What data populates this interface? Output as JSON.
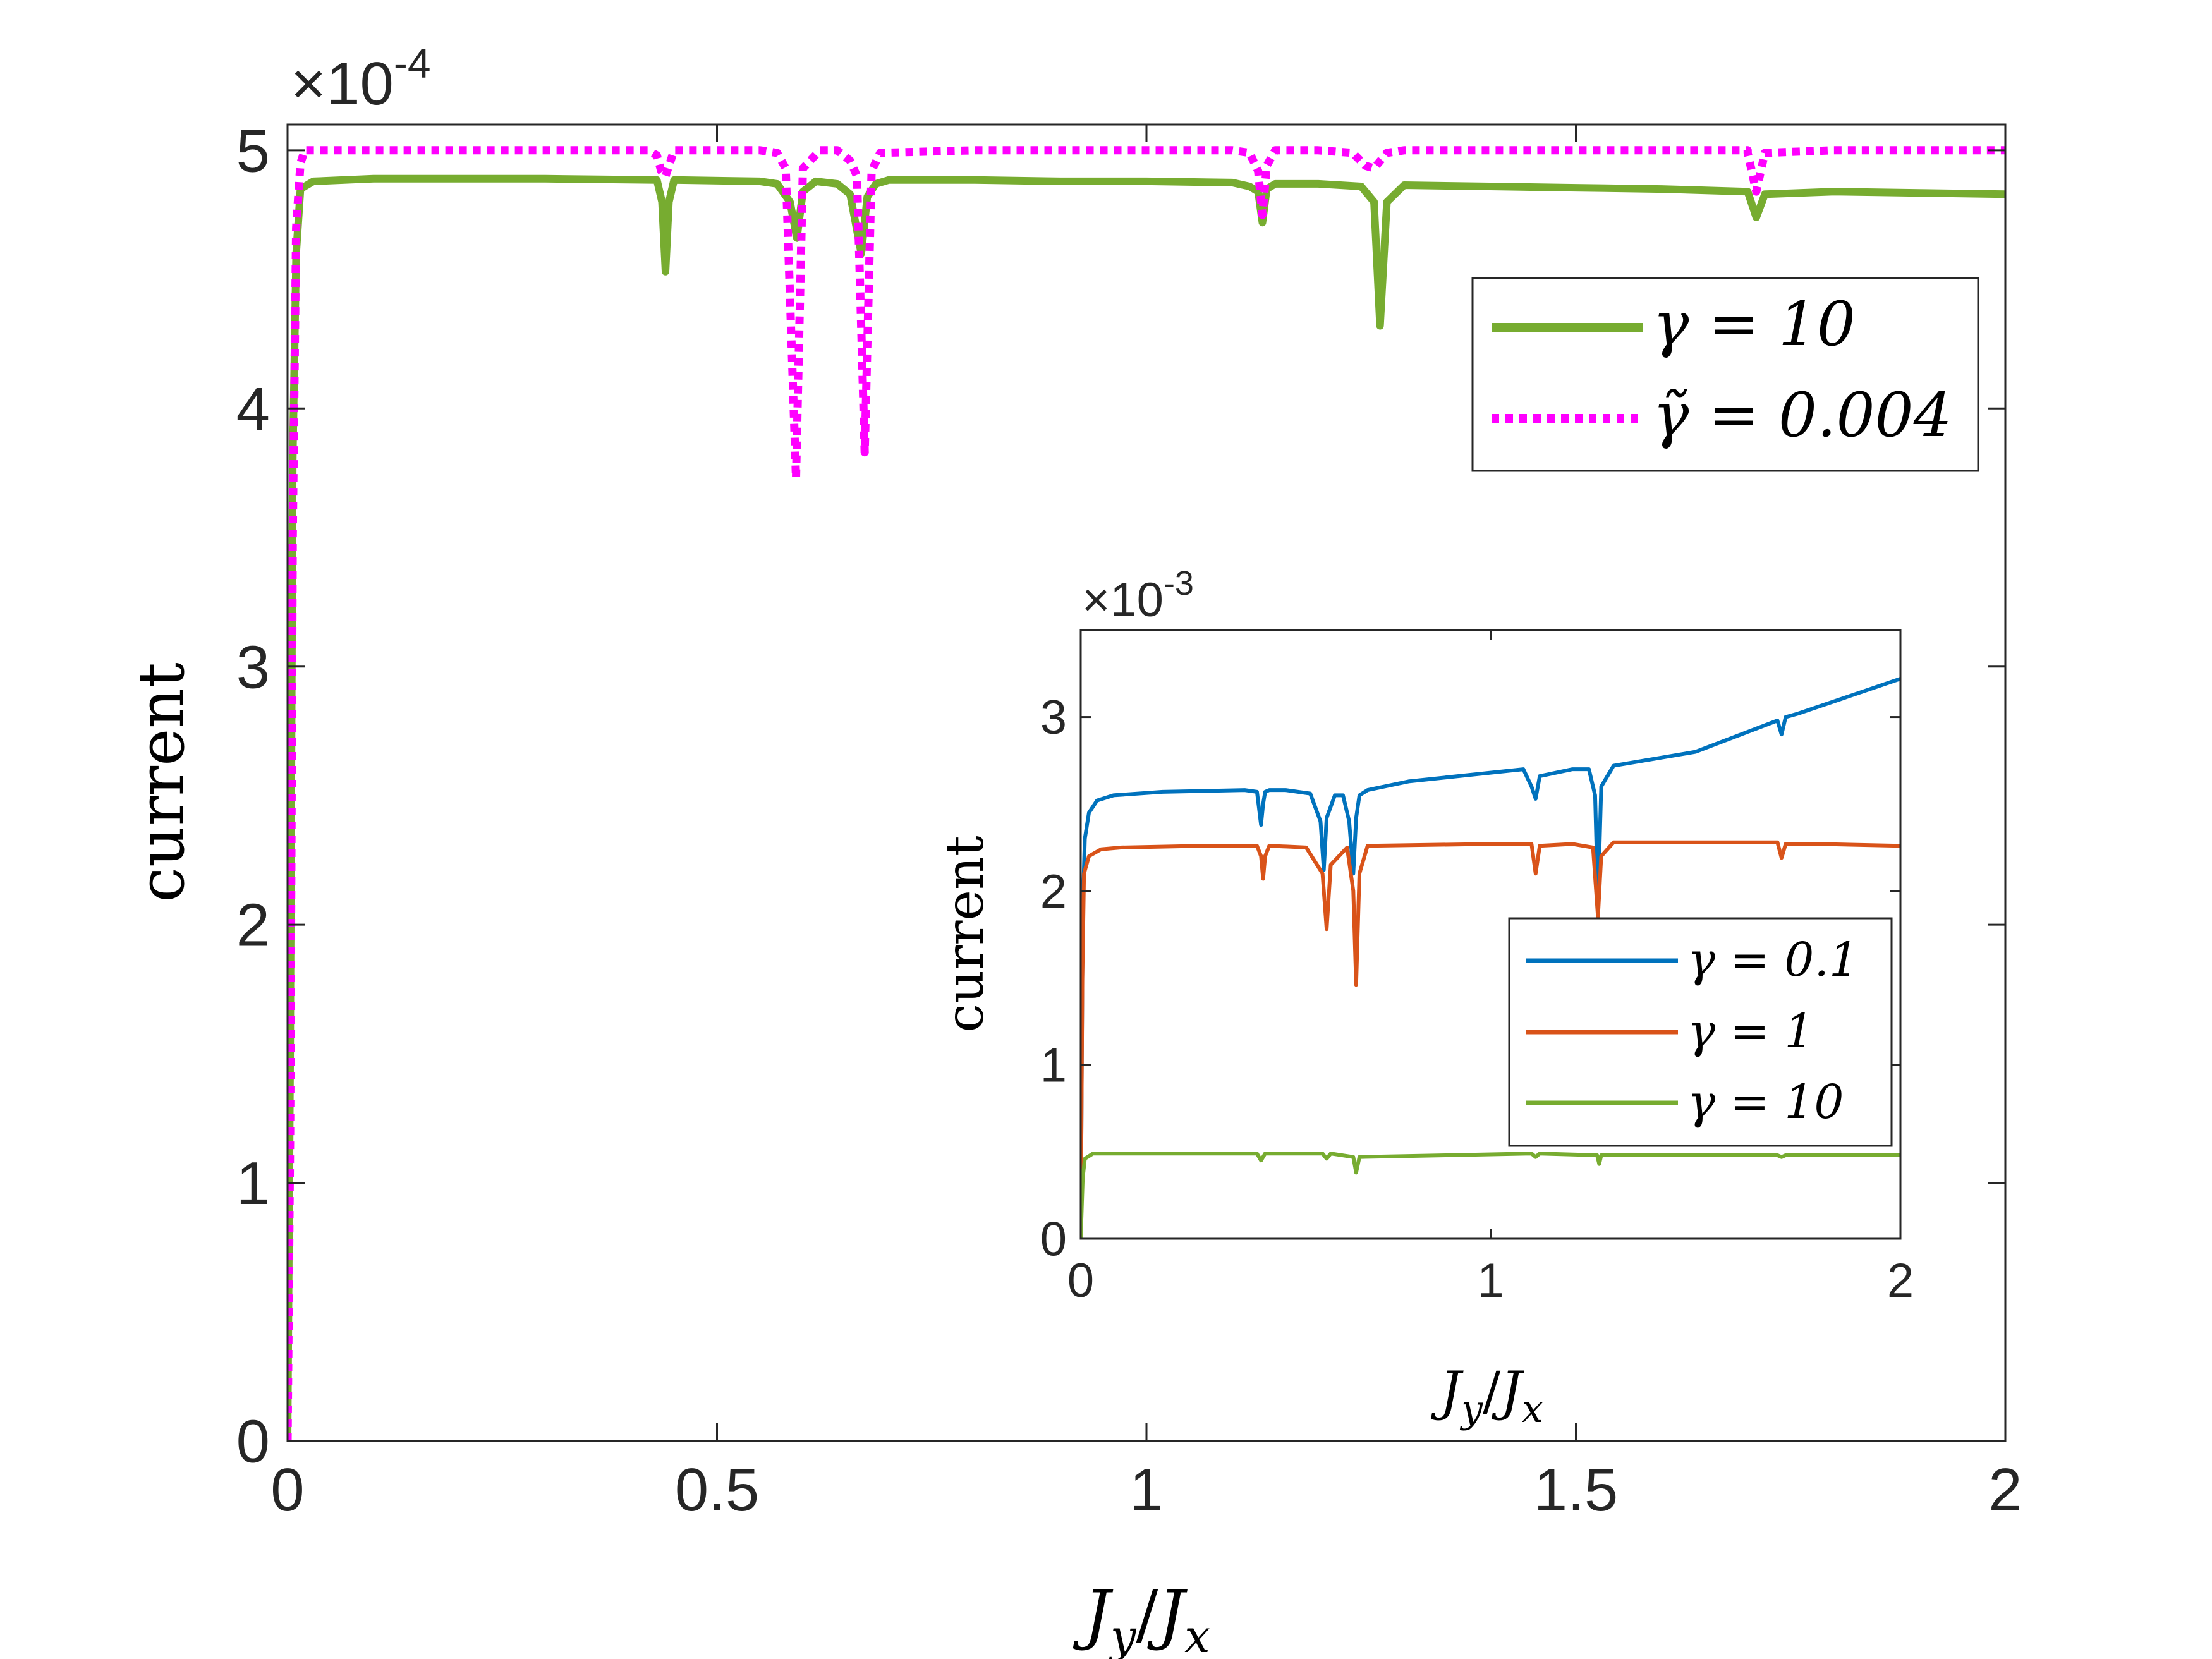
{
  "chart_data": [
    {
      "id": "main",
      "type": "line",
      "title": "",
      "xlabel": "J_y/J_x",
      "xlabel_parts": {
        "base1": "J",
        "sub1": "y",
        "sep": "/",
        "base2": "J",
        "sub2": "x"
      },
      "ylabel": "current",
      "exponent_label": {
        "times": "×",
        "base": "10",
        "exp": "-4"
      },
      "xlim": [
        0,
        2
      ],
      "ylim": [
        0,
        5.1
      ],
      "xticks": [
        0,
        0.5,
        1,
        1.5,
        2
      ],
      "xtick_labels": [
        "0",
        "0.5",
        "1",
        "1.5",
        "2"
      ],
      "yticks": [
        0,
        1,
        2,
        3,
        4,
        5
      ],
      "ytick_labels": [
        "0",
        "1",
        "2",
        "3",
        "4",
        "5"
      ],
      "grid": false,
      "legend_position": "top-right",
      "series": [
        {
          "name": "γ = 10",
          "legend_label": "γ = 10",
          "color": "#77AC30",
          "style": "solid",
          "x": [
            0,
            0.003,
            0.006,
            0.01,
            0.015,
            0.03,
            0.1,
            0.2,
            0.3,
            0.43,
            0.436,
            0.44,
            0.444,
            0.45,
            0.55,
            0.57,
            0.585,
            0.593,
            0.6,
            0.615,
            0.64,
            0.655,
            0.668,
            0.675,
            0.685,
            0.7,
            0.8,
            0.9,
            1.0,
            1.1,
            1.12,
            1.13,
            1.135,
            1.14,
            1.15,
            1.2,
            1.25,
            1.265,
            1.272,
            1.28,
            1.3,
            1.4,
            1.5,
            1.6,
            1.7,
            1.7,
            1.71,
            1.72,
            1.8,
            1.9,
            2.0
          ],
          "values": [
            0,
            1.5,
            3.8,
            4.6,
            4.85,
            4.88,
            4.89,
            4.89,
            4.89,
            4.885,
            4.8,
            4.53,
            4.8,
            4.885,
            4.88,
            4.87,
            4.8,
            4.66,
            4.84,
            4.88,
            4.87,
            4.83,
            4.6,
            4.82,
            4.87,
            4.885,
            4.885,
            4.88,
            4.88,
            4.875,
            4.86,
            4.84,
            4.72,
            4.85,
            4.87,
            4.87,
            4.86,
            4.8,
            4.32,
            4.8,
            4.865,
            4.86,
            4.855,
            4.85,
            4.84,
            4.84,
            4.74,
            4.83,
            4.84,
            4.835,
            4.83
          ]
        },
        {
          "name": "γ̃ = 0.004",
          "legend_label": "γ̃ = 0.004",
          "color": "#FF00FF",
          "style": "dotted",
          "x": [
            0,
            0.003,
            0.006,
            0.01,
            0.015,
            0.02,
            0.1,
            0.3,
            0.42,
            0.43,
            0.435,
            0.44,
            0.445,
            0.45,
            0.55,
            0.57,
            0.58,
            0.592,
            0.6,
            0.62,
            0.64,
            0.655,
            0.663,
            0.672,
            0.68,
            0.69,
            0.8,
            1.0,
            1.1,
            1.12,
            1.13,
            1.135,
            1.14,
            1.15,
            1.2,
            1.24,
            1.255,
            1.265,
            1.28,
            1.3,
            1.5,
            1.7,
            1.7,
            1.71,
            1.72,
            1.8,
            2.0
          ],
          "values": [
            0,
            1.2,
            3.5,
            4.7,
            4.95,
            5.0,
            5.0,
            5.0,
            5.0,
            4.98,
            4.92,
            4.9,
            4.95,
            5.0,
            5.0,
            4.99,
            4.93,
            3.73,
            4.93,
            5.0,
            5.0,
            4.96,
            4.9,
            3.83,
            4.92,
            4.99,
            5.0,
            5.0,
            5.0,
            4.99,
            4.92,
            4.75,
            4.94,
            5.0,
            5.0,
            4.99,
            4.94,
            4.93,
            4.99,
            5.0,
            5.0,
            5.0,
            4.99,
            4.84,
            4.99,
            5.0,
            5.0
          ]
        }
      ]
    },
    {
      "id": "inset",
      "type": "line",
      "title": "",
      "xlabel": "J_y/J_x",
      "xlabel_parts": {
        "base1": "J",
        "sub1": "y",
        "sep": "/",
        "base2": "J",
        "sub2": "x"
      },
      "ylabel": "current",
      "exponent_label": {
        "times": "×",
        "base": "10",
        "exp": "-3"
      },
      "xlim": [
        0,
        2
      ],
      "ylim": [
        0,
        3.5
      ],
      "xticks": [
        0,
        1,
        2
      ],
      "xtick_labels": [
        "0",
        "1",
        "2"
      ],
      "yticks": [
        0,
        1,
        2,
        3
      ],
      "ytick_labels": [
        "0",
        "1",
        "2",
        "3"
      ],
      "grid": false,
      "legend_position": "bottom-right",
      "series": [
        {
          "name": "γ = 0.1",
          "legend_label": "γ = 0.1",
          "color": "#0072BD",
          "style": "solid",
          "x": [
            0,
            0.005,
            0.01,
            0.02,
            0.04,
            0.08,
            0.2,
            0.4,
            0.43,
            0.44,
            0.445,
            0.45,
            0.46,
            0.5,
            0.56,
            0.585,
            0.593,
            0.6,
            0.62,
            0.64,
            0.655,
            0.665,
            0.672,
            0.68,
            0.7,
            0.8,
            1.0,
            1.08,
            1.1,
            1.11,
            1.12,
            1.2,
            1.24,
            1.255,
            1.262,
            1.27,
            1.3,
            1.5,
            1.7,
            1.71,
            1.72,
            1.75,
            1.85,
            2.0
          ],
          "values": [
            0,
            1.9,
            2.3,
            2.45,
            2.52,
            2.55,
            2.57,
            2.58,
            2.57,
            2.38,
            2.5,
            2.57,
            2.58,
            2.58,
            2.56,
            2.4,
            2.12,
            2.42,
            2.55,
            2.55,
            2.4,
            2.1,
            2.42,
            2.55,
            2.58,
            2.63,
            2.68,
            2.7,
            2.6,
            2.53,
            2.66,
            2.7,
            2.7,
            2.55,
            1.93,
            2.6,
            2.72,
            2.8,
            2.98,
            2.9,
            3.0,
            3.02,
            3.1,
            3.22
          ]
        },
        {
          "name": "γ = 1",
          "legend_label": "γ = 1",
          "color": "#D95319",
          "style": "solid",
          "x": [
            0,
            0.004,
            0.008,
            0.02,
            0.05,
            0.1,
            0.3,
            0.43,
            0.44,
            0.445,
            0.45,
            0.46,
            0.55,
            0.59,
            0.6,
            0.61,
            0.65,
            0.665,
            0.672,
            0.68,
            0.7,
            1.0,
            1.1,
            1.11,
            1.12,
            1.2,
            1.25,
            1.262,
            1.27,
            1.3,
            1.5,
            1.7,
            1.71,
            1.72,
            1.8,
            2.0
          ],
          "values": [
            0,
            1.5,
            2.1,
            2.2,
            2.24,
            2.25,
            2.26,
            2.26,
            2.2,
            2.07,
            2.2,
            2.26,
            2.25,
            2.1,
            1.78,
            2.15,
            2.25,
            2.0,
            1.46,
            2.1,
            2.26,
            2.27,
            2.27,
            2.1,
            2.26,
            2.27,
            2.25,
            1.85,
            2.2,
            2.28,
            2.28,
            2.28,
            2.19,
            2.27,
            2.27,
            2.26
          ]
        },
        {
          "name": "γ = 10",
          "legend_label": "γ = 10",
          "color": "#77AC30",
          "style": "solid",
          "x": [
            0,
            0.005,
            0.01,
            0.03,
            0.43,
            0.44,
            0.45,
            0.59,
            0.6,
            0.61,
            0.665,
            0.672,
            0.68,
            1.1,
            1.11,
            1.12,
            1.26,
            1.265,
            1.27,
            1.7,
            1.71,
            1.72,
            2.0
          ],
          "values": [
            0,
            0.35,
            0.46,
            0.49,
            0.49,
            0.45,
            0.49,
            0.49,
            0.46,
            0.49,
            0.47,
            0.38,
            0.47,
            0.49,
            0.47,
            0.49,
            0.48,
            0.43,
            0.48,
            0.48,
            0.47,
            0.48,
            0.48
          ]
        }
      ]
    }
  ]
}
